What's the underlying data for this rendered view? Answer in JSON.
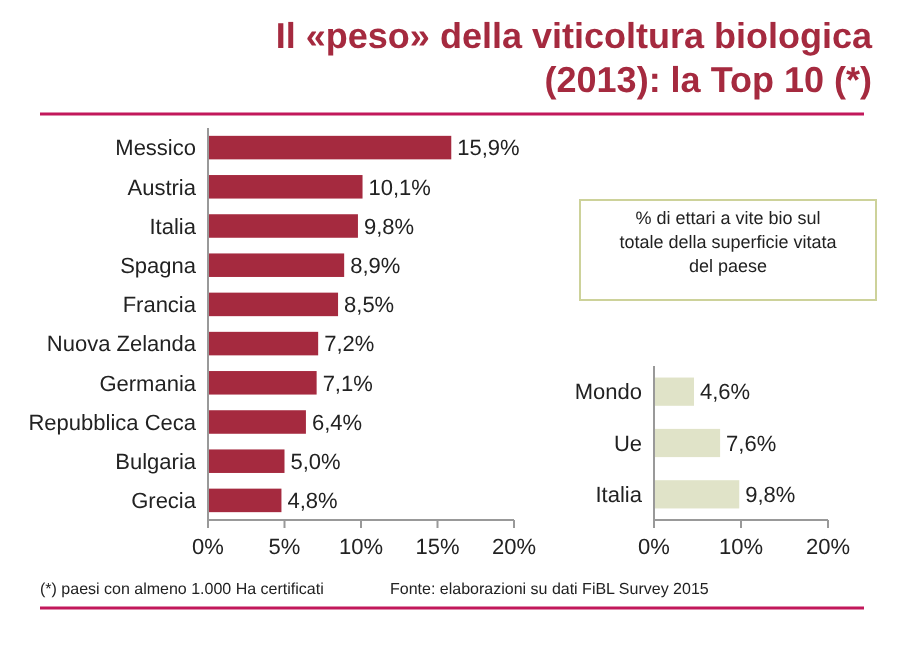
{
  "chart_data": [
    {
      "type": "bar",
      "orientation": "horizontal",
      "title": "Il «peso» della viticoltura biologica (2013): la Top 10 (*)",
      "categories": [
        "Messico",
        "Austria",
        "Italia",
        "Spagna",
        "Francia",
        "Nuova Zelanda",
        "Germania",
        "Repubblica Ceca",
        "Bulgaria",
        "Grecia"
      ],
      "values": [
        15.9,
        10.1,
        9.8,
        8.9,
        8.5,
        7.2,
        7.1,
        6.4,
        5.0,
        4.8
      ],
      "value_labels": [
        "15,9%",
        "10,1%",
        "9,8%",
        "8,9%",
        "8,5%",
        "7,2%",
        "7,1%",
        "6,4%",
        "5,0%",
        "4,8%"
      ],
      "color": "#a52a3f",
      "xlim": [
        0,
        20
      ],
      "xticks": [
        {
          "value": 0,
          "label": "0%"
        },
        {
          "value": 5,
          "label": "5%"
        },
        {
          "value": 10,
          "label": "10%"
        },
        {
          "value": 15,
          "label": "15%"
        },
        {
          "value": 20,
          "label": "20%"
        }
      ],
      "grid": false,
      "annotations": [
        "(*) paesi con almeno 1.000 Ha certificati",
        "Fonte: elaborazioni su dati FiBL Survey 2015"
      ]
    },
    {
      "type": "bar",
      "orientation": "horizontal",
      "categories": [
        "Mondo",
        "Ue",
        "Italia"
      ],
      "values": [
        4.6,
        7.6,
        9.8
      ],
      "value_labels": [
        "4,6%",
        "7,6%",
        "9,8%"
      ],
      "color": "#e0e3c8",
      "xlim": [
        0,
        20
      ],
      "xticks": [
        {
          "value": 0,
          "label": "0%"
        },
        {
          "value": 10,
          "label": "10%"
        },
        {
          "value": 20,
          "label": "20%"
        }
      ],
      "grid": false,
      "annotations": [
        "% di ettari a vite bio sul totale della superficie vitata del paese"
      ]
    }
  ]
}
